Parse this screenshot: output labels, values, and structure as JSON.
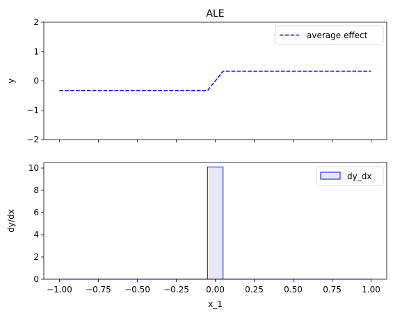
{
  "chart_data": [
    {
      "type": "line",
      "title": "ALE",
      "xlabel": "",
      "ylabel": "y",
      "xlim": [
        -1.1,
        1.1
      ],
      "ylim": [
        -2,
        2
      ],
      "xticks": [
        -1.0,
        -0.75,
        -0.5,
        -0.25,
        0.0,
        0.25,
        0.5,
        0.75,
        1.0
      ],
      "yticks": [
        -2,
        -1,
        0,
        1,
        2
      ],
      "ytick_labels": [
        "−2",
        "−1",
        "0",
        "1",
        "2"
      ],
      "grid": false,
      "legend_position": "top-right",
      "series": [
        {
          "name": "average effect",
          "color": "#0000ff",
          "linestyle": "dashed",
          "x": [
            -1.0,
            -0.05,
            0.05,
            1.0
          ],
          "y": [
            -0.33,
            -0.33,
            0.33,
            0.33
          ]
        }
      ]
    },
    {
      "type": "bar",
      "xlabel": "x_1",
      "ylabel": "dy/dx",
      "xlim": [
        -1.1,
        1.1
      ],
      "ylim": [
        0,
        10.5
      ],
      "xticks": [
        -1.0,
        -0.75,
        -0.5,
        -0.25,
        0.0,
        0.25,
        0.5,
        0.75,
        1.0
      ],
      "xtick_labels": [
        "−1.00",
        "−0.75",
        "−0.50",
        "−0.25",
        "0.00",
        "0.25",
        "0.50",
        "0.75",
        "1.00"
      ],
      "yticks": [
        0,
        2,
        4,
        6,
        8,
        10
      ],
      "ytick_labels": [
        "0",
        "2",
        "4",
        "6",
        "8",
        "10"
      ],
      "grid": false,
      "legend_position": "top-right",
      "series": [
        {
          "name": "dy_dx",
          "edgecolor": "#0000ff",
          "facecolor": "#e8e8f4",
          "bars": [
            {
              "x0": -1.0,
              "x1": -0.05,
              "value": 0
            },
            {
              "x0": -0.05,
              "x1": 0.05,
              "value": 10.1
            },
            {
              "x0": 0.05,
              "x1": 1.0,
              "value": 0
            }
          ]
        }
      ]
    }
  ]
}
